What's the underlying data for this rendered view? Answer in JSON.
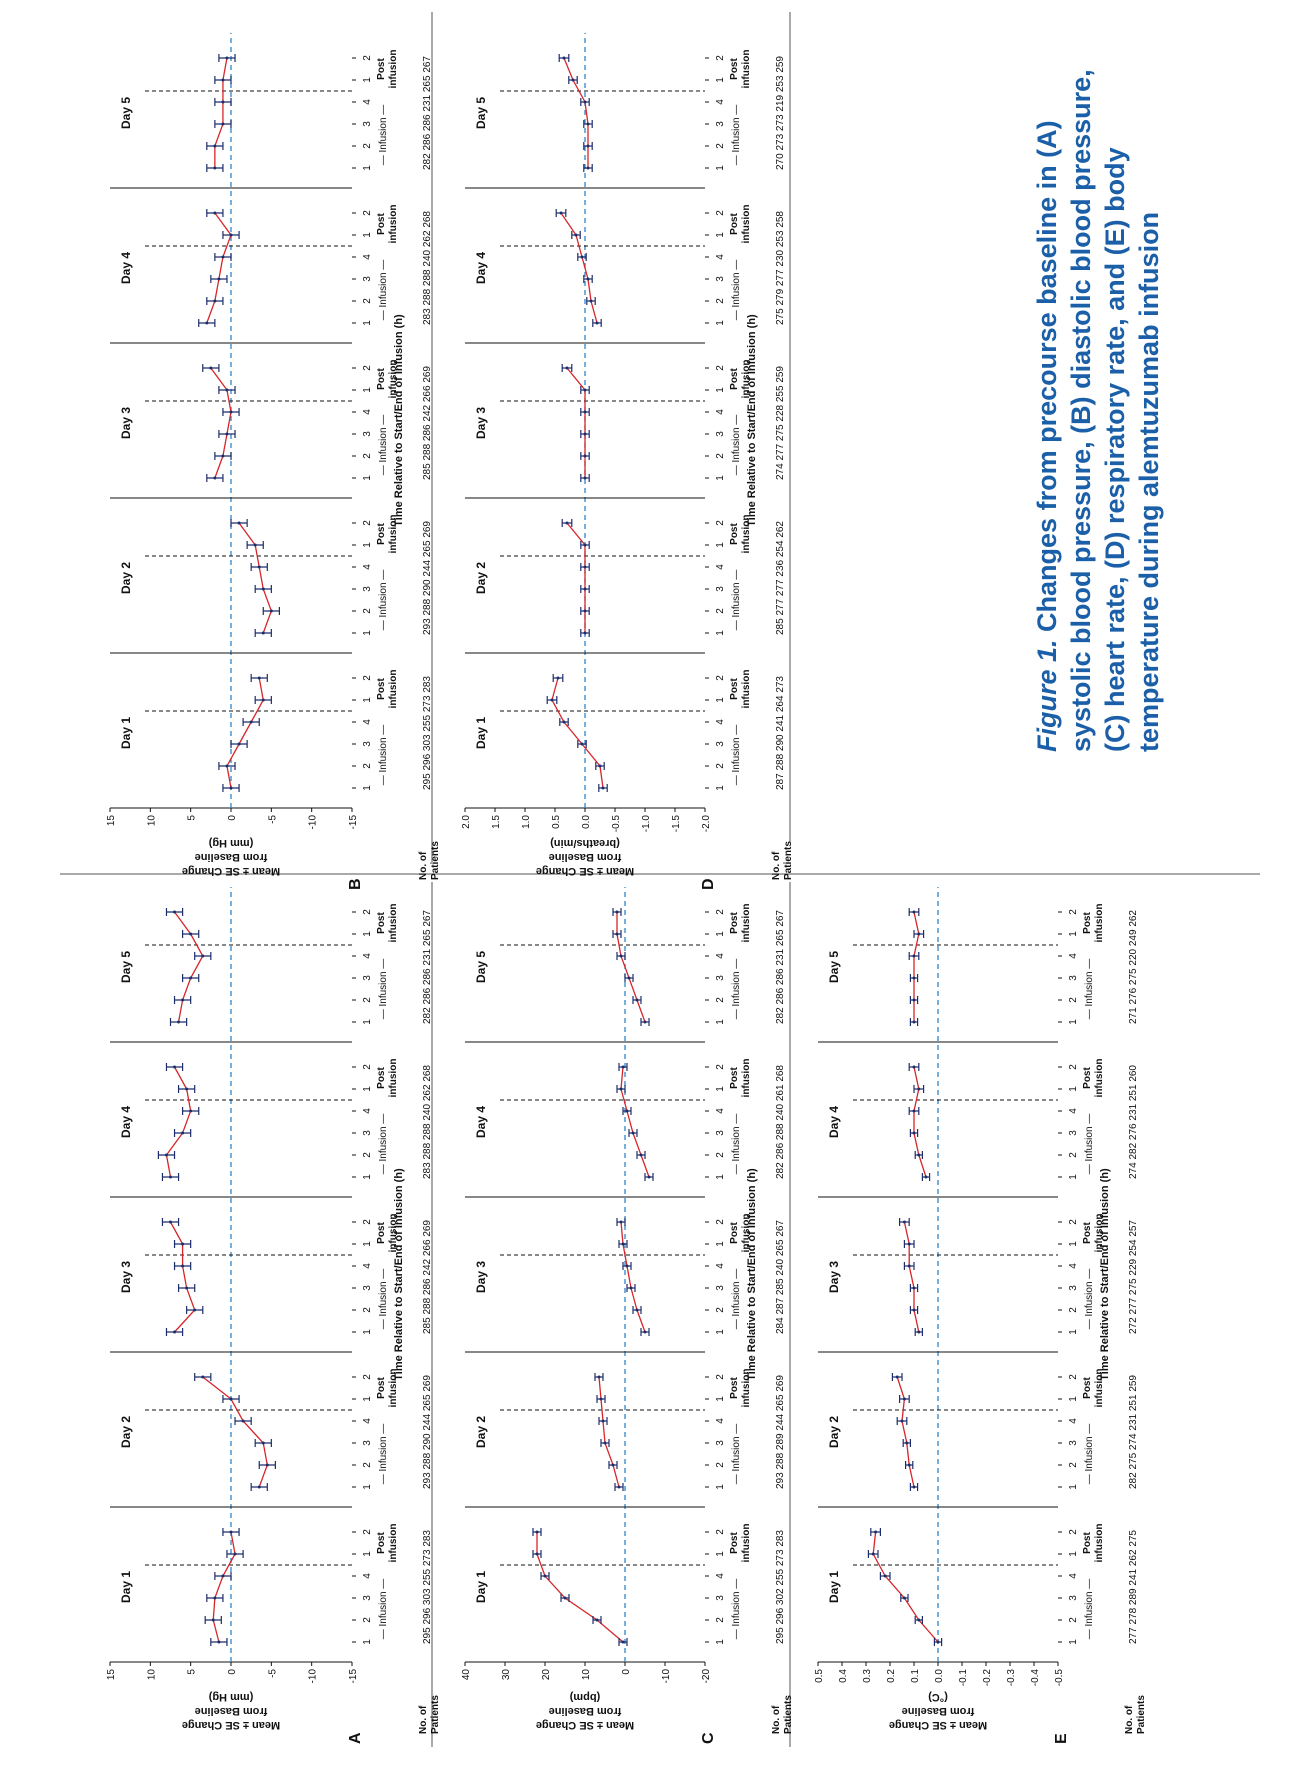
{
  "caption": {
    "label": "Figure 1.",
    "text": "Changes from precourse baseline in (A) systolic blood pressure, (B) diastolic blood pressure, (C) heart rate, (D) respiratory rate, and (E) body temperature during alemtuzumab infusion"
  },
  "colors": {
    "line": "#d6262a",
    "errorbar": "#1d2d6b",
    "baseline": "#2e86c9",
    "axis": "#111111"
  },
  "shared": {
    "days": [
      "Day 1",
      "Day 2",
      "Day 3",
      "Day 4",
      "Day 5"
    ],
    "tick_labels": [
      "1",
      "2",
      "3",
      "4",
      "1",
      "2"
    ],
    "infusion_label": "Infusion",
    "post_label": "Post infusion",
    "xlabel": "Time Relative to Start/End of Infusion (h)",
    "patients_label": "No. of Patients"
  },
  "chart_data": [
    {
      "panel": "A",
      "type": "line",
      "ylabel": "Mean ± SE Change from Baseline (mm Hg)",
      "ylim": [
        -15,
        15
      ],
      "yticks": [
        15,
        10,
        5,
        0,
        -5,
        -10,
        -15
      ],
      "series": [
        {
          "day": "Day 1",
          "values": [
            1.5,
            2.2,
            2,
            1,
            -0.5,
            0
          ],
          "se": [
            1,
            1,
            1,
            1,
            1,
            1
          ]
        },
        {
          "day": "Day 2",
          "values": [
            -3.5,
            -4.5,
            -4,
            -1.5,
            0,
            3.5
          ],
          "se": [
            1,
            1,
            1,
            1,
            1,
            1
          ]
        },
        {
          "day": "Day 3",
          "values": [
            7,
            4.5,
            5.5,
            6,
            6,
            7.5
          ],
          "se": [
            1,
            1,
            1,
            1,
            1,
            1
          ]
        },
        {
          "day": "Day 4",
          "values": [
            7.5,
            8,
            6,
            5,
            5.5,
            7
          ],
          "se": [
            1,
            1,
            1,
            1,
            1,
            1
          ]
        },
        {
          "day": "Day 5",
          "values": [
            6.5,
            6,
            5,
            3.5,
            5,
            7
          ],
          "se": [
            1,
            1,
            1,
            1,
            1,
            1
          ]
        }
      ],
      "patients": [
        [
          "295",
          "296",
          "303",
          "255",
          "273",
          "283"
        ],
        [
          "293",
          "288",
          "290",
          "244",
          "265",
          "269"
        ],
        [
          "285",
          "288",
          "286",
          "242",
          "266",
          "269"
        ],
        [
          "283",
          "288",
          "288",
          "240",
          "262",
          "268"
        ],
        [
          "282",
          "286",
          "286",
          "231",
          "265",
          "267"
        ]
      ]
    },
    {
      "panel": "B",
      "type": "line",
      "ylabel": "Mean ± SE Change from Baseline (mm Hg)",
      "ylim": [
        -15,
        15
      ],
      "yticks": [
        15,
        10,
        5,
        0,
        -5,
        -10,
        -15
      ],
      "series": [
        {
          "day": "Day 1",
          "values": [
            0,
            0.5,
            -1,
            -2.5,
            -4,
            -3.5
          ],
          "se": [
            1,
            1,
            1,
            1,
            1,
            1
          ]
        },
        {
          "day": "Day 2",
          "values": [
            -4,
            -5,
            -4,
            -3.5,
            -3,
            -1
          ],
          "se": [
            1,
            1,
            1,
            1,
            1,
            1
          ]
        },
        {
          "day": "Day 3",
          "values": [
            2,
            1,
            0.5,
            0,
            0.5,
            2.5
          ],
          "se": [
            1,
            1,
            1,
            1,
            1,
            1
          ]
        },
        {
          "day": "Day 4",
          "values": [
            3,
            2,
            1.5,
            1,
            0,
            2
          ],
          "se": [
            1,
            1,
            1,
            1,
            1,
            1
          ]
        },
        {
          "day": "Day 5",
          "values": [
            2,
            2,
            1,
            1,
            1,
            0.5
          ],
          "se": [
            1,
            1,
            1,
            1,
            1,
            1
          ]
        }
      ],
      "patients": [
        [
          "295",
          "296",
          "303",
          "255",
          "273",
          "283"
        ],
        [
          "293",
          "288",
          "290",
          "244",
          "265",
          "269"
        ],
        [
          "285",
          "288",
          "286",
          "242",
          "266",
          "269"
        ],
        [
          "283",
          "288",
          "288",
          "240",
          "262",
          "268"
        ],
        [
          "282",
          "286",
          "286",
          "231",
          "265",
          "267"
        ]
      ]
    },
    {
      "panel": "C",
      "type": "line",
      "ylabel": "Mean ± SE Change from Baseline (bpm)",
      "ylim": [
        -20,
        40
      ],
      "yticks": [
        40,
        30,
        20,
        10,
        0,
        -10,
        -20
      ],
      "series": [
        {
          "day": "Day 1",
          "values": [
            0.5,
            7,
            15,
            20,
            22,
            22
          ],
          "se": [
            1,
            1,
            1,
            1,
            1,
            1
          ]
        },
        {
          "day": "Day 2",
          "values": [
            1.5,
            3,
            5,
            5.5,
            6,
            6.5
          ],
          "se": [
            1,
            1,
            1,
            1,
            1,
            1
          ]
        },
        {
          "day": "Day 3",
          "values": [
            -5,
            -3,
            -1.5,
            -0.5,
            0.5,
            1
          ],
          "se": [
            1,
            1,
            1,
            1,
            1,
            1
          ]
        },
        {
          "day": "Day 4",
          "values": [
            -6,
            -4,
            -2,
            -0.5,
            1,
            0.5
          ],
          "se": [
            1,
            1,
            1,
            1,
            1,
            1
          ]
        },
        {
          "day": "Day 5",
          "values": [
            -5,
            -3,
            -1,
            1,
            2,
            2
          ],
          "se": [
            1,
            1,
            1,
            1,
            1,
            1
          ]
        }
      ],
      "patients": [
        [
          "295",
          "296",
          "302",
          "255",
          "273",
          "283"
        ],
        [
          "293",
          "288",
          "289",
          "244",
          "265",
          "269"
        ],
        [
          "284",
          "287",
          "285",
          "240",
          "265",
          "267"
        ],
        [
          "282",
          "286",
          "288",
          "240",
          "261",
          "268"
        ],
        [
          "282",
          "286",
          "286",
          "231",
          "265",
          "267"
        ]
      ]
    },
    {
      "panel": "D",
      "type": "line",
      "ylabel": "Mean ± SE Change from Baseline (breaths/min)",
      "ylim": [
        -2,
        2
      ],
      "yticks": [
        "2.0",
        "1.5",
        "1.0",
        "0.5",
        "0.0",
        "-0.5",
        "-1.0",
        "-1.5",
        "-2.0"
      ],
      "series": [
        {
          "day": "Day 1",
          "values": [
            -0.3,
            -0.25,
            0.05,
            0.35,
            0.55,
            0.45
          ],
          "se": [
            0.07,
            0.07,
            0.07,
            0.07,
            0.08,
            0.08
          ]
        },
        {
          "day": "Day 2",
          "values": [
            0,
            0,
            0,
            0,
            0,
            0.3
          ],
          "se": [
            0.07,
            0.07,
            0.07,
            0.07,
            0.07,
            0.08
          ]
        },
        {
          "day": "Day 3",
          "values": [
            0,
            0,
            0,
            0,
            0,
            0.3
          ],
          "se": [
            0.07,
            0.07,
            0.07,
            0.07,
            0.07,
            0.08
          ]
        },
        {
          "day": "Day 4",
          "values": [
            -0.2,
            -0.1,
            -0.05,
            0.05,
            0.15,
            0.4
          ],
          "se": [
            0.07,
            0.07,
            0.07,
            0.07,
            0.07,
            0.08
          ]
        },
        {
          "day": "Day 5",
          "values": [
            -0.05,
            -0.05,
            -0.05,
            0,
            0.2,
            0.35
          ],
          "se": [
            0.07,
            0.07,
            0.07,
            0.07,
            0.07,
            0.08
          ]
        }
      ],
      "patients": [
        [
          "287",
          "288",
          "290",
          "241",
          "264",
          "273"
        ],
        [
          "285",
          "277",
          "277",
          "236",
          "254",
          "262"
        ],
        [
          "274",
          "277",
          "275",
          "228",
          "255",
          "259"
        ],
        [
          "275",
          "279",
          "277",
          "230",
          "253",
          "258"
        ],
        [
          "270",
          "273",
          "273",
          "219",
          "253",
          "259"
        ]
      ]
    },
    {
      "panel": "E",
      "type": "line",
      "ylabel": "Mean ± SE Change from Baseline (°C)",
      "ylim": [
        -0.5,
        0.5
      ],
      "yticks": [
        "0.5",
        "0.4",
        "0.3",
        "0.2",
        "0.1",
        "0.0",
        "-0.1",
        "-0.2",
        "-0.3",
        "-0.4",
        "-0.5"
      ],
      "series": [
        {
          "day": "Day 1",
          "values": [
            0,
            0.08,
            0.14,
            0.22,
            0.27,
            0.26
          ],
          "se": [
            0.015,
            0.015,
            0.015,
            0.02,
            0.02,
            0.02
          ]
        },
        {
          "day": "Day 2",
          "values": [
            0.1,
            0.12,
            0.13,
            0.15,
            0.14,
            0.17
          ],
          "se": [
            0.015,
            0.015,
            0.015,
            0.02,
            0.02,
            0.02
          ]
        },
        {
          "day": "Day 3",
          "values": [
            0.08,
            0.1,
            0.1,
            0.12,
            0.12,
            0.14
          ],
          "se": [
            0.015,
            0.015,
            0.015,
            0.02,
            0.02,
            0.02
          ]
        },
        {
          "day": "Day 4",
          "values": [
            0.05,
            0.08,
            0.1,
            0.1,
            0.08,
            0.1
          ],
          "se": [
            0.015,
            0.015,
            0.015,
            0.02,
            0.02,
            0.02
          ]
        },
        {
          "day": "Day 5",
          "values": [
            0.1,
            0.1,
            0.1,
            0.1,
            0.08,
            0.1
          ],
          "se": [
            0.015,
            0.015,
            0.015,
            0.02,
            0.02,
            0.02
          ]
        }
      ],
      "patients": [
        [
          "277",
          "278",
          "289",
          "241",
          "262",
          "275"
        ],
        [
          "282",
          "275",
          "274",
          "231",
          "251",
          "259"
        ],
        [
          "272",
          "277",
          "275",
          "229",
          "254",
          "257"
        ],
        [
          "274",
          "282",
          "276",
          "231",
          "251",
          "260"
        ],
        [
          "271",
          "276",
          "275",
          "220",
          "249",
          "262"
        ]
      ]
    }
  ]
}
